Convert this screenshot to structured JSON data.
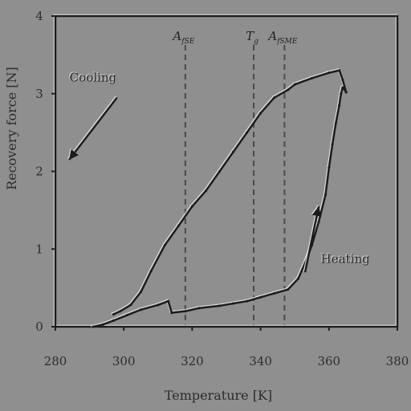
{
  "chart_data": {
    "type": "line",
    "title": "",
    "xlabel": "Temperature [K]",
    "ylabel": "Recovery force [N]",
    "xlim": [
      280,
      380
    ],
    "ylim": [
      0,
      4
    ],
    "xticks": [
      280,
      300,
      320,
      340,
      360,
      380
    ],
    "yticks": [
      0,
      1,
      2,
      3,
      4
    ],
    "grid": false,
    "legend": "none",
    "vlines": [
      {
        "x": 318,
        "label": "A_fSE"
      },
      {
        "x": 338,
        "label": "T_g"
      },
      {
        "x": 347,
        "label": "A_fSME"
      }
    ],
    "series": [
      {
        "role": "heating",
        "x": [
          291,
          294,
          297,
          301,
          305,
          310,
          313,
          314,
          318,
          322,
          328,
          332,
          336,
          340,
          344,
          348,
          351,
          353,
          355,
          357,
          359,
          360,
          361,
          362,
          363,
          363.5,
          364,
          365
        ],
        "y": [
          0.0,
          0.03,
          0.08,
          0.15,
          0.22,
          0.28,
          0.33,
          0.18,
          0.2,
          0.24,
          0.27,
          0.3,
          0.33,
          0.38,
          0.43,
          0.48,
          0.62,
          0.82,
          1.05,
          1.35,
          1.7,
          2.05,
          2.35,
          2.62,
          2.85,
          3.0,
          3.08,
          3.02
        ]
      },
      {
        "role": "cooling",
        "x": [
          365,
          364,
          363,
          360,
          355,
          350,
          348,
          344,
          340,
          336,
          332,
          328,
          324,
          320,
          316,
          312,
          308,
          305,
          302,
          299,
          297
        ],
        "y": [
          3.02,
          3.18,
          3.3,
          3.27,
          3.2,
          3.12,
          3.05,
          2.95,
          2.75,
          2.5,
          2.25,
          2.0,
          1.75,
          1.55,
          1.3,
          1.05,
          0.72,
          0.45,
          0.28,
          0.2,
          0.16
        ]
      }
    ],
    "annotations": [
      {
        "text": "Cooling",
        "arrow_from": [
          298,
          2.95
        ],
        "arrow_to": [
          284,
          2.15
        ]
      },
      {
        "text": "Heating",
        "arrow_from": [
          353,
          0.7
        ],
        "arrow_to": [
          357,
          1.55
        ]
      }
    ]
  }
}
